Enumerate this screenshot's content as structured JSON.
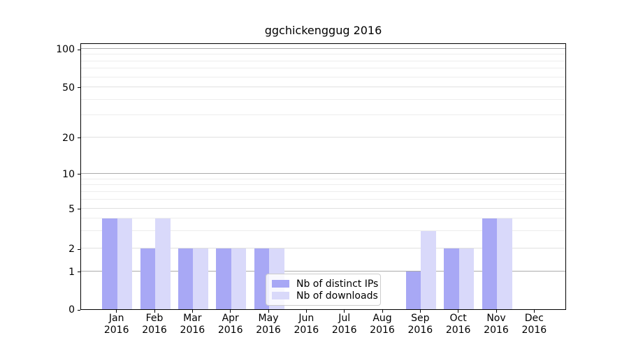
{
  "chart_data": {
    "type": "bar",
    "title": "ggchickenggug 2016",
    "categories": [
      "Jan",
      "Feb",
      "Mar",
      "Apr",
      "May",
      "Jun",
      "Jul",
      "Aug",
      "Sep",
      "Oct",
      "Nov",
      "Dec"
    ],
    "category_sublabel": "2016",
    "series": [
      {
        "name": "Nb of distinct IPs",
        "color": "#a8a8f5",
        "values": [
          4,
          2,
          2,
          2,
          2,
          0,
          0,
          0,
          1,
          2,
          4,
          0
        ]
      },
      {
        "name": "Nb of downloads",
        "color": "#d9d9fa",
        "values": [
          4,
          4,
          2,
          2,
          2,
          0,
          0,
          0,
          3,
          2,
          4,
          0
        ]
      }
    ],
    "xlabel": "",
    "ylabel": "",
    "y_scale": "symlog",
    "ylim": [
      0,
      112
    ],
    "y_ticks": [
      0,
      1,
      2,
      5,
      10,
      20,
      50,
      100
    ],
    "y_minor_ticks": [
      3,
      4,
      6,
      7,
      8,
      9,
      30,
      40,
      60,
      70,
      80,
      90
    ],
    "grid": true,
    "legend_position": "lower-center-inside"
  }
}
